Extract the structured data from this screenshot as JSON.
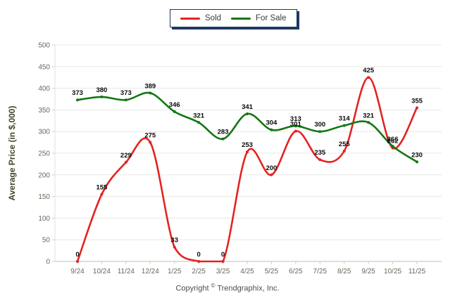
{
  "legend": {
    "items": [
      {
        "label": "Sold",
        "color": "#e42320"
      },
      {
        "label": "For Sale",
        "color": "#127712"
      }
    ]
  },
  "footer": {
    "copyright_pre": "Copyright",
    "copyright_symbol": "©",
    "copyright_post": " Trendgraphix, Inc."
  },
  "chart_data": {
    "type": "line",
    "title": "",
    "xlabel": "",
    "ylabel": "Average Price (in $,000)",
    "categories": [
      "9/24",
      "10/24",
      "11/24",
      "12/24",
      "1/25",
      "2/25",
      "3/25",
      "4/25",
      "5/25",
      "6/25",
      "7/25",
      "8/25",
      "9/25",
      "10/25",
      "11/25"
    ],
    "series": [
      {
        "name": "Sold",
        "color": "#e42320",
        "values": [
          0,
          155,
          229,
          275,
          33,
          0,
          0,
          253,
          200,
          301,
          235,
          255,
          425,
          262,
          355
        ]
      },
      {
        "name": "For Sale",
        "color": "#127712",
        "values": [
          373,
          380,
          373,
          389,
          346,
          321,
          283,
          341,
          304,
          313,
          300,
          314,
          321,
          266,
          230
        ]
      }
    ],
    "ylim": [
      0,
      500
    ],
    "ytick_step": 50,
    "yticks": [
      0,
      50,
      100,
      150,
      200,
      250,
      300,
      350,
      400,
      450,
      500
    ],
    "grid": true,
    "legend_position": "top-center",
    "point_labels": true
  }
}
